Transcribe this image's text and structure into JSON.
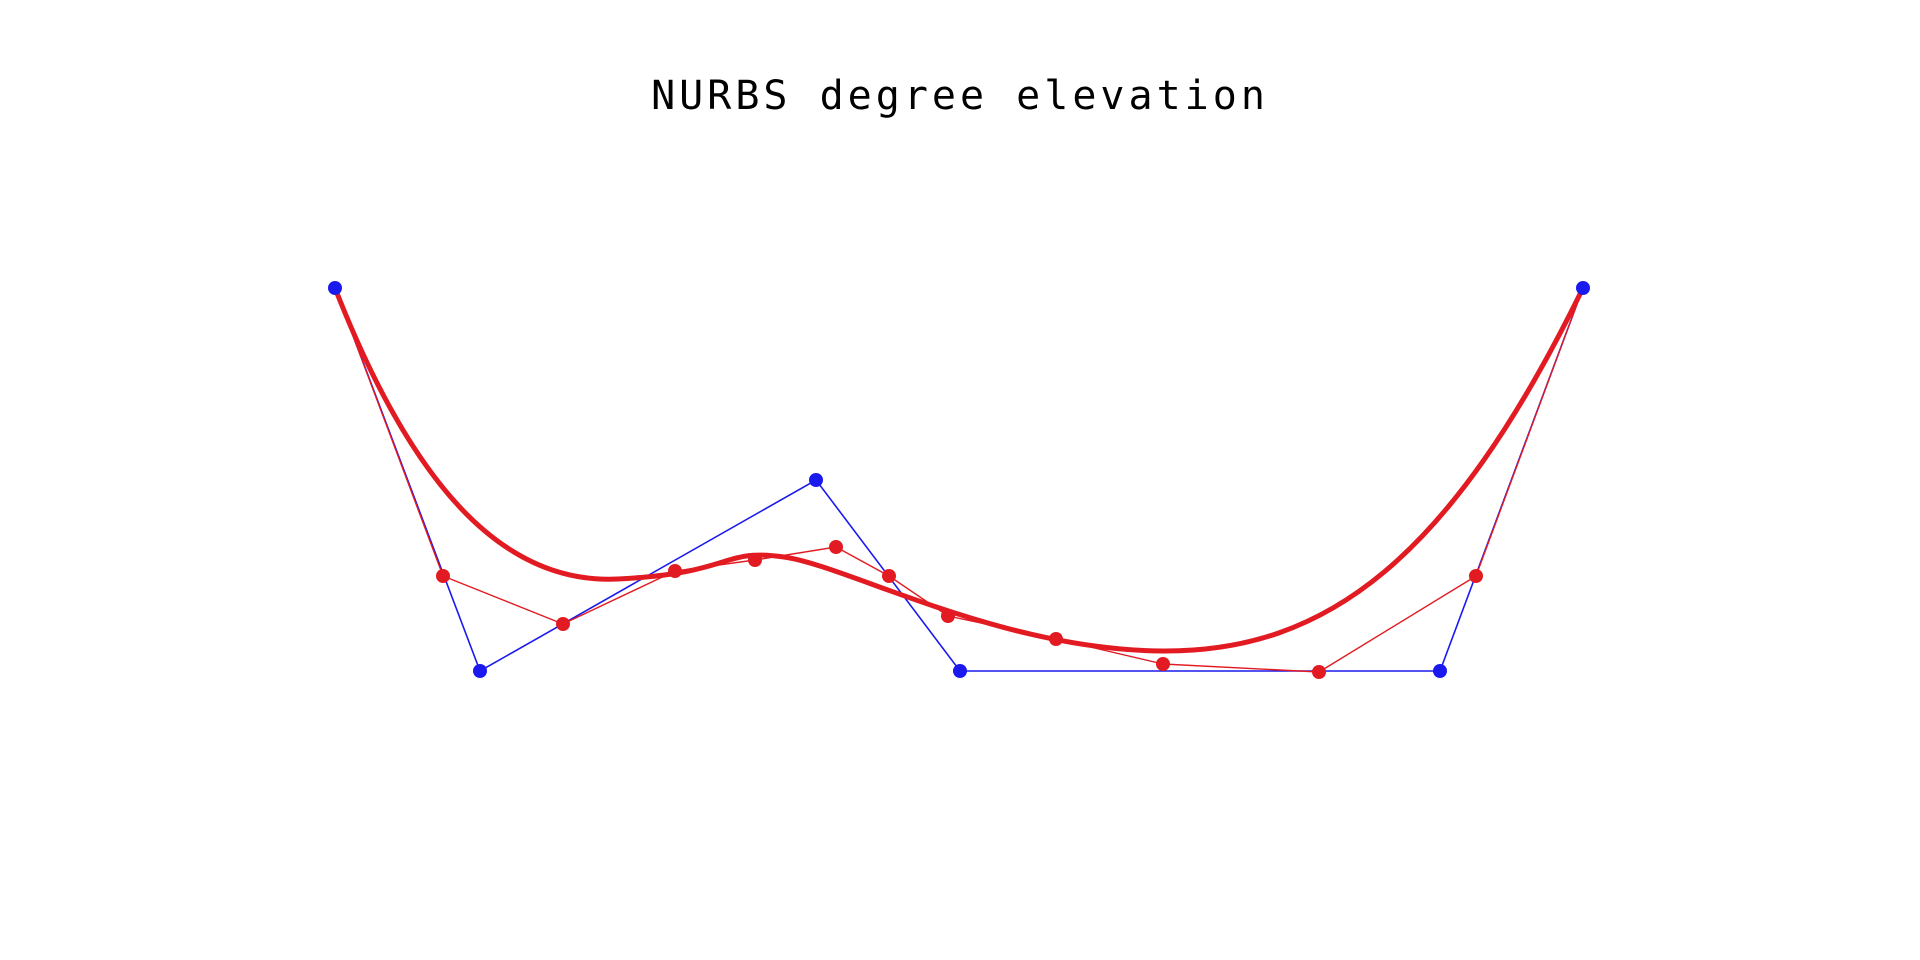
{
  "header": {
    "title": "NURBS degree elevation"
  }
}
